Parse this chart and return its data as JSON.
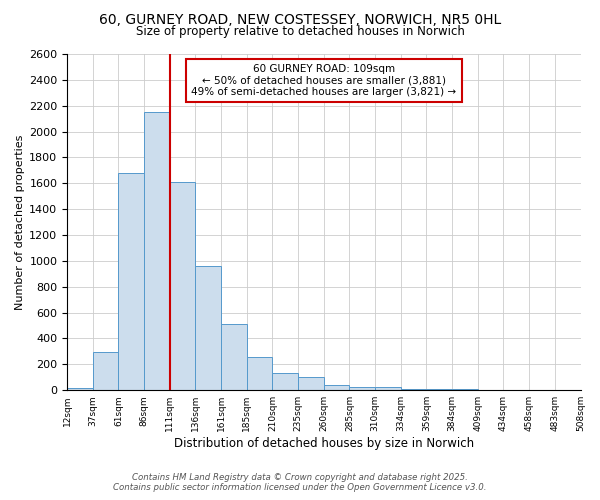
{
  "title": "60, GURNEY ROAD, NEW COSTESSEY, NORWICH, NR5 0HL",
  "subtitle": "Size of property relative to detached houses in Norwich",
  "xlabel": "Distribution of detached houses by size in Norwich",
  "ylabel": "Number of detached properties",
  "property_label": "60 GURNEY ROAD: 109sqm",
  "annotation_line1": "← 50% of detached houses are smaller (3,881)",
  "annotation_line2": "49% of semi-detached houses are larger (3,821) →",
  "bar_color": "#ccdded",
  "bar_edgecolor": "#5599cc",
  "vline_color": "#cc0000",
  "annotation_box_color": "#cc0000",
  "bin_labels": [
    "12sqm",
    "37sqm",
    "61sqm",
    "86sqm",
    "111sqm",
    "136sqm",
    "161sqm",
    "185sqm",
    "210sqm",
    "235sqm",
    "260sqm",
    "285sqm",
    "310sqm",
    "334sqm",
    "359sqm",
    "384sqm",
    "409sqm",
    "434sqm",
    "458sqm",
    "483sqm",
    "508sqm"
  ],
  "counts": [
    20,
    295,
    1680,
    2150,
    1610,
    960,
    510,
    255,
    130,
    100,
    40,
    25,
    25,
    10,
    10,
    10,
    5,
    5,
    5,
    5
  ],
  "vline_x": 4,
  "ylim": [
    0,
    2600
  ],
  "ytick_interval": 200,
  "footnote1": "Contains HM Land Registry data © Crown copyright and database right 2025.",
  "footnote2": "Contains public sector information licensed under the Open Government Licence v3.0.",
  "background_color": "#ffffff",
  "grid_color": "#cccccc"
}
